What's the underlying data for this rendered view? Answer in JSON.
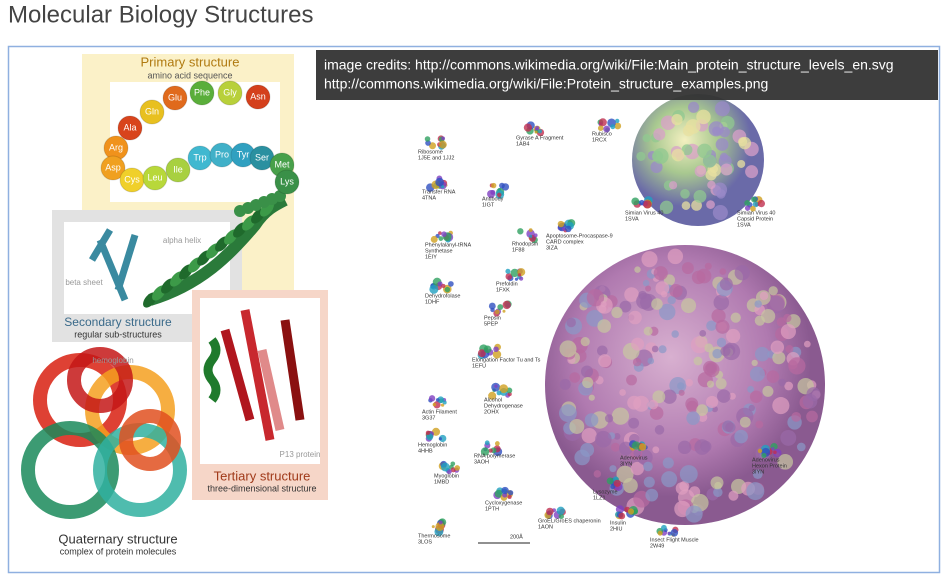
{
  "header": {
    "title": "Molecular Biology Structures"
  },
  "credits": [
    "image credits: http://commons.wikimedia.org/wiki/File:Main_protein_structure_levels_en.svg",
    "http://commons.wikimedia.org/wiki/File:Protein_structure_examples.png"
  ],
  "levels": {
    "primary": {
      "title": "Primary structure",
      "subtitle": "amino acid sequence"
    },
    "amino_acids": [
      "Asn",
      "Gly",
      "Phe",
      "Glu",
      "Gln",
      "Ala",
      "Arg",
      "Asp",
      "Cys",
      "Leu",
      "Ile",
      "Trp",
      "Pro",
      "Tyr",
      "Ser",
      "Met",
      "Lys"
    ],
    "alpha_helix": "alpha helix",
    "beta_sheet": "beta sheet",
    "secondary": {
      "title": "Secondary structure",
      "subtitle": "regular sub-structures"
    },
    "hemoglobin": "hemoglobin",
    "p13": "P13 protein",
    "tertiary": {
      "title": "Tertiary structure",
      "subtitle": "three-dimensional structure"
    },
    "quaternary": {
      "title": "Quaternary structure",
      "subtitle": "complex of protein molecules"
    }
  },
  "examples": [
    {
      "lines": [
        "Ribosome",
        "1J5E and 1JJ2"
      ]
    },
    {
      "lines": [
        "Gyrase A Fragment",
        "1AB4"
      ]
    },
    {
      "lines": [
        "Rubisco",
        "1RCX"
      ]
    },
    {
      "lines": [
        "Transfer RNA",
        "4TNA"
      ]
    },
    {
      "lines": [
        "Antibody",
        "1IGT"
      ]
    },
    {
      "lines": [
        "Simian Virus 40",
        "1SVA"
      ]
    },
    {
      "lines": [
        "Simian Virus 40",
        "Capsid Protein",
        "1SVA"
      ]
    },
    {
      "lines": [
        "Phenylalanyl-tRNA",
        "Synthetase",
        "1EIY"
      ]
    },
    {
      "lines": [
        "Rhodopsin",
        "1F88"
      ]
    },
    {
      "lines": [
        "Apoptosome-Procaspase-9",
        "CARD complex",
        "3IZA"
      ]
    },
    {
      "lines": [
        "Prefoldin",
        "1FXK"
      ]
    },
    {
      "lines": [
        "Dehydrofolase",
        "1DHF"
      ]
    },
    {
      "lines": [
        "Pepsin",
        "5PEP"
      ]
    },
    {
      "lines": [
        "Elongation Factor Tu and Ts",
        "1EFU"
      ]
    },
    {
      "lines": [
        "Alcohol",
        "Dehydrogenase",
        "2OHX"
      ]
    },
    {
      "lines": [
        "Actin Filament",
        "3G37"
      ]
    },
    {
      "lines": [
        "Hemoglobin",
        "4HHB"
      ]
    },
    {
      "lines": [
        "RNA polymerase",
        "3AOH"
      ]
    },
    {
      "lines": [
        "Adenovirus",
        "3IYN"
      ]
    },
    {
      "lines": [
        "Adenovirus",
        "Hexon Protein",
        "3IYN"
      ]
    },
    {
      "lines": [
        "Myoglobin",
        "1MBD"
      ]
    },
    {
      "lines": [
        "Cycloxygenase",
        "1PTH"
      ]
    },
    {
      "lines": [
        "GroEL/GroES chaperonin",
        "1AON"
      ]
    },
    {
      "lines": [
        "Lysozyme",
        "1LZ1"
      ]
    },
    {
      "lines": [
        "Insulin",
        "2HIU"
      ]
    },
    {
      "lines": [
        "Thermosome",
        "3LOS"
      ]
    },
    {
      "lines": [
        "200Å"
      ]
    },
    {
      "lines": [
        "Insect Flight Muscle",
        "2W49"
      ]
    }
  ]
}
